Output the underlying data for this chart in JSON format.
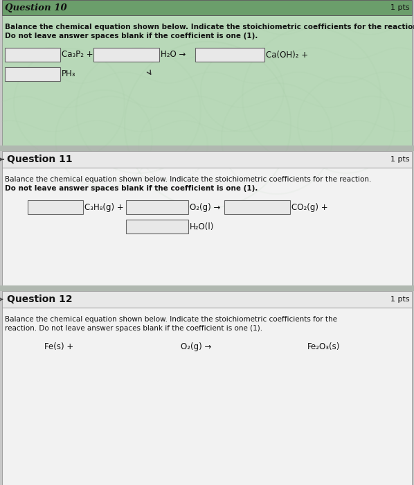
{
  "bg_outer": "#c8c8c8",
  "bg_q10_header": "#6b9e6b",
  "bg_q10_body": "#b8d8b8",
  "bg_q11_header": "#e8e8e8",
  "bg_q11_body": "#f2f2f2",
  "bg_q12_header": "#e8e8e8",
  "bg_q12_body": "#f2f2f2",
  "bg_gap": "#b0b8b0",
  "bg_input_box": "#e8e8e8",
  "border_input": "#666666",
  "border_section": "#999999",
  "q10_header": "Question 10",
  "q10_pts": "1 pts",
  "q10_instr1": "Balance the chemical equation shown below. Indicate the stoichiometric coefficients for the reaction.",
  "q10_instr2": "Do not leave answer spaces blank if the coefficient is one (1).",
  "q11_header": "Question 11",
  "q11_pts": "1 pts",
  "q11_instr1": "Balance the chemical equation shown below. Indicate the stoichiometric coefficients for the reaction.",
  "q11_instr2": "Do not leave answer spaces blank if the coefficient is one (1).",
  "q12_header": "Question 12",
  "q12_pts": "1 pts",
  "q12_instr1": "Balance the chemical equation shown below. Indicate the stoichiometric coefficients for the",
  "q12_instr2": "reaction. Do not leave answer spaces blank if the coefficient is one (1).",
  "fig_width": 5.98,
  "fig_height": 7.0,
  "dpi": 100
}
